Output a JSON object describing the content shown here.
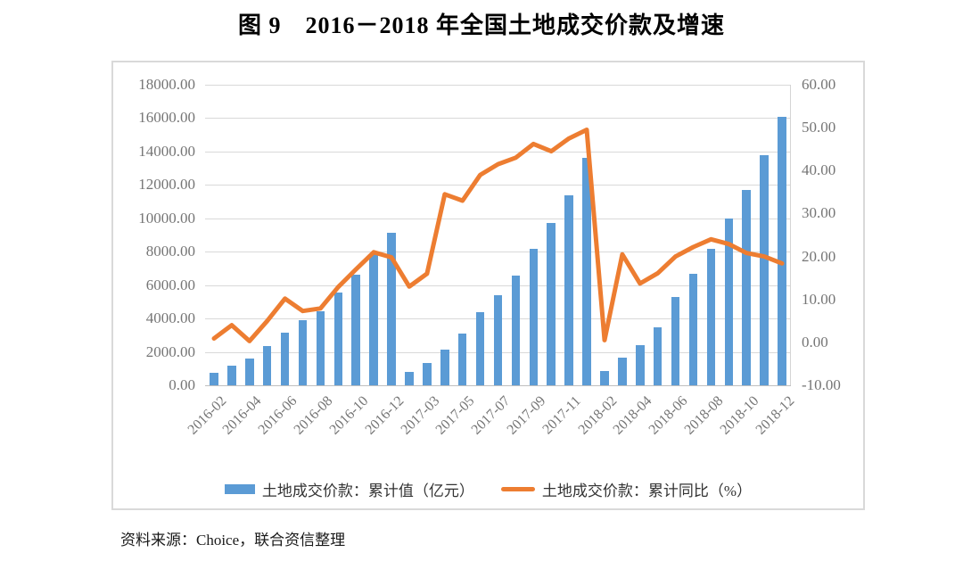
{
  "title": "图 9　2016－2018 年全国土地成交价款及增速",
  "source_note": "资料来源：Choice，联合资信整理",
  "legend": {
    "bar_label": "土地成交价款：累计值（亿元）",
    "line_label": "土地成交价款：累计同比（%）"
  },
  "colors": {
    "bar": "#5b9bd5",
    "line": "#ed7d31",
    "grid": "#d9d9d9",
    "axis_text": "#757575",
    "panel_border": "#d9d9d9"
  },
  "chart_data": {
    "type": "bar+line combo",
    "grid": true,
    "legend_position": "bottom",
    "categories": [
      "2016-02",
      "2016-03",
      "2016-04",
      "2016-05",
      "2016-06",
      "2016-07",
      "2016-08",
      "2016-09",
      "2016-10",
      "2016-11",
      "2016-12",
      "2017-02",
      "2017-03",
      "2017-04",
      "2017-05",
      "2017-06",
      "2017-07",
      "2017-08",
      "2017-09",
      "2017-10",
      "2017-11",
      "2017-12",
      "2018-02",
      "2018-03",
      "2018-04",
      "2018-05",
      "2018-06",
      "2018-07",
      "2018-08",
      "2018-09",
      "2018-10",
      "2018-11",
      "2018-12"
    ],
    "x_tick_labels": [
      "2016-02",
      "2016-04",
      "2016-06",
      "2016-08",
      "2016-10",
      "2016-12",
      "2017-03",
      "2017-05",
      "2017-07",
      "2017-09",
      "2017-11",
      "2018-02",
      "2018-04",
      "2018-06",
      "2018-08",
      "2018-10",
      "2018-12"
    ],
    "series": [
      {
        "name": "土地成交价款：累计值（亿元）",
        "type": "bar",
        "axis": "left",
        "values": [
          750,
          1200,
          1610,
          2330,
          3160,
          3890,
          4460,
          5550,
          6650,
          7870,
          9120,
          800,
          1360,
          2160,
          3090,
          4360,
          5400,
          6580,
          8190,
          9700,
          11400,
          13630,
          870,
          1640,
          2410,
          3480,
          5280,
          6670,
          8150,
          10000,
          11700,
          13780,
          16100
        ]
      },
      {
        "name": "土地成交价款：累计同比（%）",
        "type": "line",
        "axis": "right",
        "values": [
          0.9,
          4.0,
          0.3,
          5.0,
          10.2,
          7.3,
          7.9,
          12.9,
          17.0,
          21.0,
          19.8,
          13.0,
          16.0,
          34.5,
          33.0,
          39.0,
          41.5,
          43.0,
          46.2,
          44.5,
          47.5,
          49.5,
          0.5,
          20.5,
          13.7,
          16.1,
          20.0,
          22.2,
          24.0,
          22.9,
          20.8,
          20.0,
          18.4
        ]
      }
    ],
    "left_axis": {
      "min": 0,
      "max": 18000,
      "step": 2000,
      "tick_labels": [
        "18000.00",
        "16000.00",
        "14000.00",
        "12000.00",
        "10000.00",
        "8000.00",
        "6000.00",
        "4000.00",
        "2000.00",
        "0.00"
      ]
    },
    "right_axis": {
      "min": -10,
      "max": 60,
      "step": 10,
      "tick_labels": [
        "60.00",
        "50.00",
        "40.00",
        "30.00",
        "20.00",
        "10.00",
        "0.00",
        "-10.00"
      ]
    }
  }
}
